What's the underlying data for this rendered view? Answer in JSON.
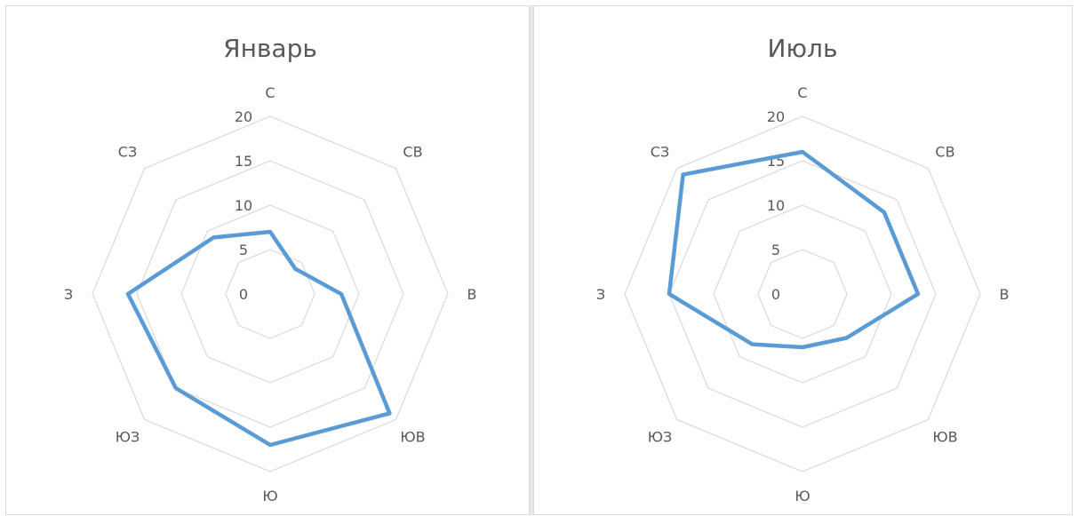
{
  "chart_data": [
    {
      "type": "radar",
      "title": "Январь",
      "categories": [
        "С",
        "СВ",
        "В",
        "ЮВ",
        "Ю",
        "ЮЗ",
        "З",
        "СЗ"
      ],
      "ticks": [
        0,
        5,
        10,
        15,
        20
      ],
      "rlim": [
        0,
        20
      ],
      "grid": true,
      "legend": "none",
      "series": [
        {
          "values": [
            7,
            4,
            8,
            19,
            17,
            15,
            16,
            9
          ],
          "color": "#5b9bd5"
        }
      ]
    },
    {
      "type": "radar",
      "title": "Июль",
      "categories": [
        "С",
        "СВ",
        "В",
        "ЮВ",
        "Ю",
        "ЮЗ",
        "З",
        "СЗ"
      ],
      "ticks": [
        0,
        5,
        10,
        15,
        20
      ],
      "rlim": [
        0,
        20
      ],
      "grid": true,
      "legend": "none",
      "series": [
        {
          "values": [
            16,
            13,
            13,
            7,
            6,
            8,
            15,
            19
          ],
          "color": "#5b9bd5"
        }
      ]
    }
  ]
}
